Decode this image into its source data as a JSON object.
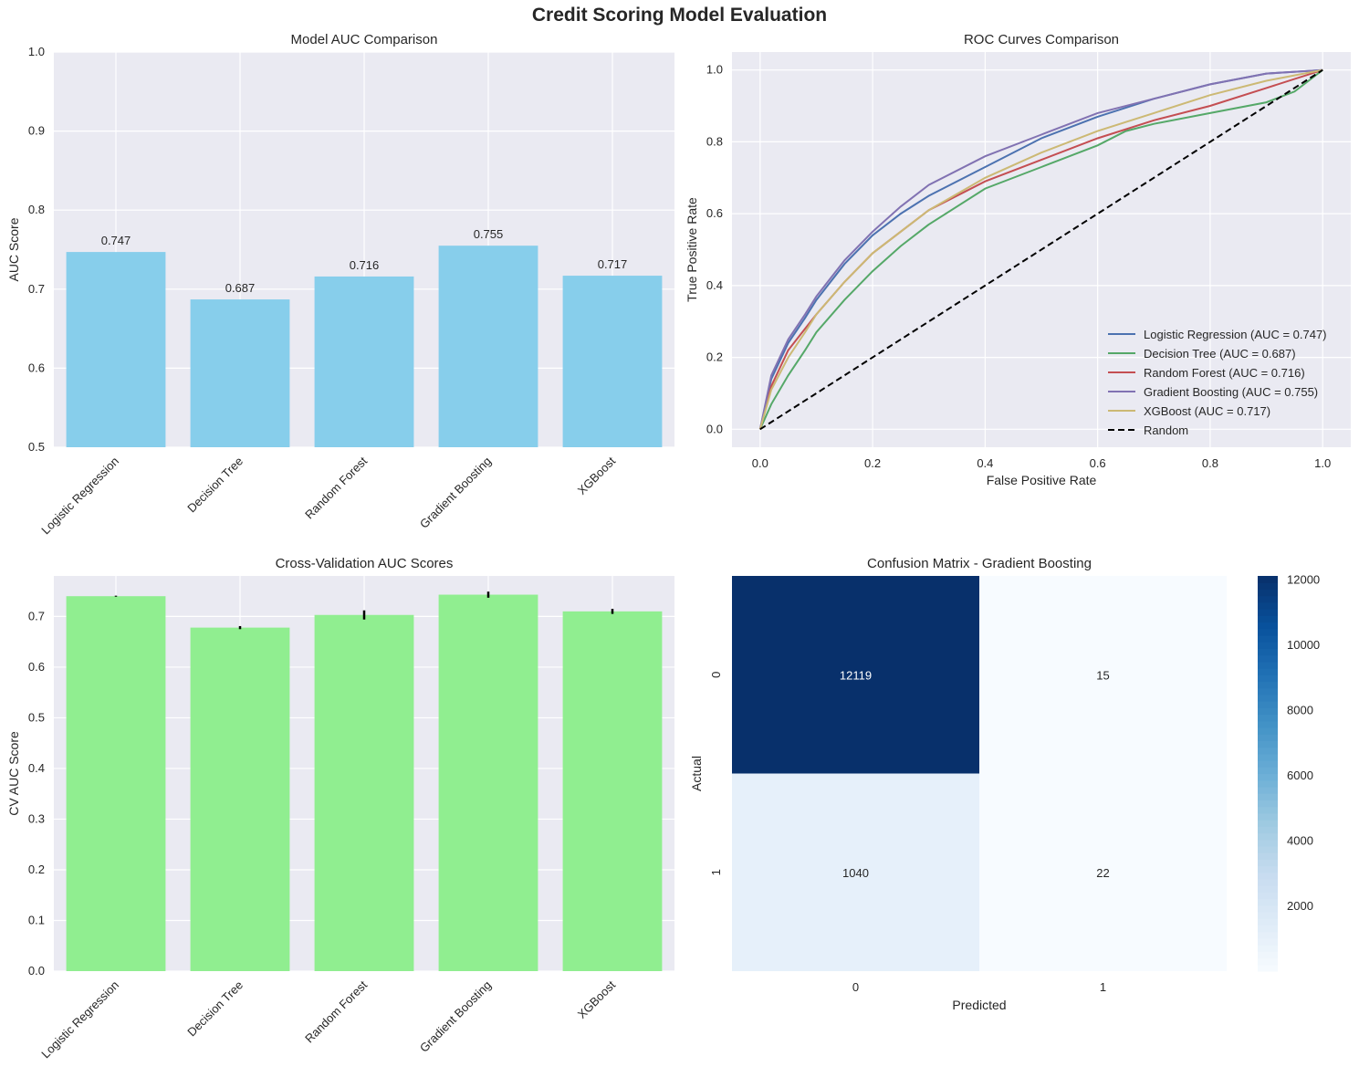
{
  "figure": {
    "title": "Credit Scoring Model Evaluation"
  },
  "colors": {
    "axes_bg": "#eaeaf2",
    "grid": "#ffffff",
    "auc_bar": "#87ceeb",
    "cv_bar": "#90ee90",
    "error_bar": "#000000"
  },
  "chart_data": [
    {
      "id": "auc_comparison",
      "type": "bar",
      "title": "Model AUC Comparison",
      "xlabel": "",
      "ylabel": "AUC Score",
      "categories": [
        "Logistic Regression",
        "Decision Tree",
        "Random Forest",
        "Gradient Boosting",
        "XGBoost"
      ],
      "values": [
        0.747,
        0.687,
        0.716,
        0.755,
        0.717
      ],
      "data_labels": [
        "0.747",
        "0.687",
        "0.716",
        "0.755",
        "0.717"
      ],
      "ylim": [
        0.5,
        1.0
      ],
      "yticks": [
        "0.5",
        "0.6",
        "0.7",
        "0.8",
        "0.9",
        "1.0"
      ],
      "grid": true
    },
    {
      "id": "roc_curves",
      "type": "line",
      "title": "ROC Curves Comparison",
      "xlabel": "False Positive Rate",
      "ylabel": "True Positive Rate",
      "xlim": [
        -0.05,
        1.05
      ],
      "ylim": [
        -0.05,
        1.05
      ],
      "xticks": [
        "0.0",
        "0.2",
        "0.4",
        "0.6",
        "0.8",
        "1.0"
      ],
      "yticks": [
        "0.0",
        "0.2",
        "0.4",
        "0.6",
        "0.8",
        "1.0"
      ],
      "legend": "lower-right",
      "grid": true,
      "series": [
        {
          "name": "Logistic Regression (AUC = 0.747)",
          "color": "#4c72b0",
          "dash": false,
          "x": [
            0,
            0.02,
            0.05,
            0.08,
            0.1,
            0.15,
            0.2,
            0.25,
            0.3,
            0.4,
            0.5,
            0.6,
            0.7,
            0.8,
            0.9,
            1.0
          ],
          "y": [
            0,
            0.14,
            0.24,
            0.31,
            0.36,
            0.46,
            0.54,
            0.6,
            0.65,
            0.73,
            0.81,
            0.87,
            0.92,
            0.96,
            0.99,
            1.0
          ]
        },
        {
          "name": "Decision Tree (AUC = 0.687)",
          "color": "#55a868",
          "dash": false,
          "x": [
            0,
            0.02,
            0.05,
            0.08,
            0.1,
            0.15,
            0.2,
            0.25,
            0.3,
            0.4,
            0.5,
            0.6,
            0.65,
            0.7,
            0.8,
            0.9,
            0.95,
            1.0
          ],
          "y": [
            0,
            0.07,
            0.15,
            0.22,
            0.27,
            0.36,
            0.44,
            0.51,
            0.57,
            0.67,
            0.73,
            0.79,
            0.83,
            0.85,
            0.88,
            0.91,
            0.94,
            1.0
          ]
        },
        {
          "name": "Random Forest (AUC = 0.716)",
          "color": "#c44e52",
          "dash": false,
          "x": [
            0,
            0.02,
            0.05,
            0.08,
            0.1,
            0.15,
            0.2,
            0.25,
            0.3,
            0.4,
            0.5,
            0.6,
            0.7,
            0.8,
            0.9,
            1.0
          ],
          "y": [
            0,
            0.12,
            0.22,
            0.28,
            0.32,
            0.41,
            0.49,
            0.55,
            0.61,
            0.69,
            0.75,
            0.81,
            0.86,
            0.9,
            0.95,
            1.0
          ]
        },
        {
          "name": "Gradient Boosting (AUC = 0.755)",
          "color": "#8172b2",
          "dash": false,
          "x": [
            0,
            0.02,
            0.05,
            0.08,
            0.1,
            0.15,
            0.2,
            0.25,
            0.3,
            0.4,
            0.5,
            0.6,
            0.7,
            0.8,
            0.9,
            1.0
          ],
          "y": [
            0,
            0.15,
            0.25,
            0.32,
            0.37,
            0.47,
            0.55,
            0.62,
            0.68,
            0.76,
            0.82,
            0.88,
            0.92,
            0.96,
            0.99,
            1.0
          ]
        },
        {
          "name": "XGBoost (AUC = 0.717)",
          "color": "#ccb974",
          "dash": false,
          "x": [
            0,
            0.02,
            0.05,
            0.08,
            0.1,
            0.15,
            0.2,
            0.25,
            0.3,
            0.4,
            0.5,
            0.6,
            0.7,
            0.8,
            0.9,
            1.0
          ],
          "y": [
            0,
            0.11,
            0.2,
            0.27,
            0.32,
            0.41,
            0.49,
            0.55,
            0.61,
            0.7,
            0.77,
            0.83,
            0.88,
            0.93,
            0.97,
            1.0
          ]
        },
        {
          "name": "Random",
          "color": "#000000",
          "dash": true,
          "x": [
            0,
            1
          ],
          "y": [
            0,
            1
          ]
        }
      ]
    },
    {
      "id": "cv_auc",
      "type": "bar",
      "title": "Cross-Validation AUC Scores",
      "xlabel": "",
      "ylabel": "CV AUC Score",
      "categories": [
        "Logistic Regression",
        "Decision Tree",
        "Random Forest",
        "Gradient Boosting",
        "XGBoost"
      ],
      "values": [
        0.74,
        0.678,
        0.703,
        0.743,
        0.71
      ],
      "errors": [
        0.001,
        0.003,
        0.009,
        0.006,
        0.005
      ],
      "ylim": [
        0,
        0.78
      ],
      "yticks": [
        "0.0",
        "0.1",
        "0.2",
        "0.3",
        "0.4",
        "0.5",
        "0.6",
        "0.7"
      ],
      "grid": true
    },
    {
      "id": "confusion_matrix",
      "type": "heatmap",
      "title": "Confusion Matrix - Gradient Boosting",
      "xlabel": "Predicted",
      "ylabel": "Actual",
      "x_categories": [
        "0",
        "1"
      ],
      "y_categories": [
        "0",
        "1"
      ],
      "matrix": [
        [
          12119,
          15
        ],
        [
          1040,
          22
        ]
      ],
      "cell_labels": [
        [
          "12119",
          "15"
        ],
        [
          "1040",
          "22"
        ]
      ],
      "colormap": "Blues",
      "colorbar_range": [
        15,
        12119
      ],
      "colorbar_ticks": [
        "2000",
        "4000",
        "6000",
        "8000",
        "10000",
        "12000"
      ]
    }
  ]
}
